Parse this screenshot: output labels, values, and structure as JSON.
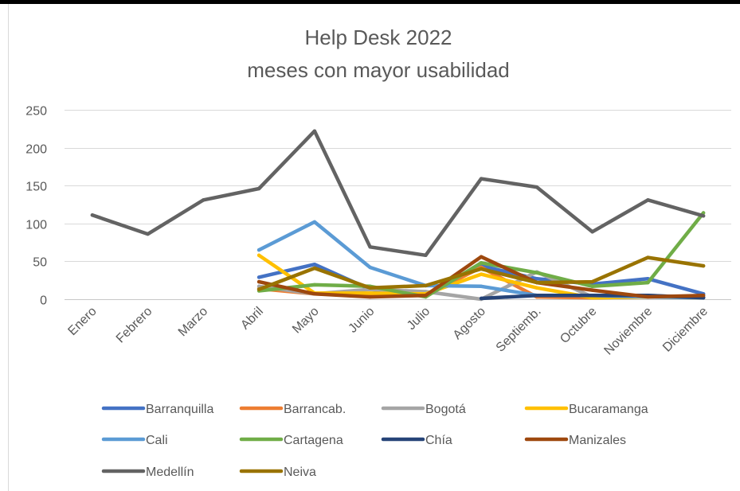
{
  "chart_data": {
    "type": "line",
    "title": "Help Desk 2022",
    "subtitle": "meses con mayor usabilidad",
    "categories": [
      "Enero",
      "Febrero",
      "Marzo",
      "Abril",
      "Mayo",
      "Junio",
      "Julio",
      "Agosto",
      "Septiemb.",
      "Octubre",
      "Noviembre",
      "Diciembre"
    ],
    "ylim": [
      0,
      250
    ],
    "yticks": [
      0,
      50,
      100,
      150,
      200,
      250
    ],
    "grid": true,
    "legend_position": "bottom",
    "series": [
      {
        "name": "Barranquilla",
        "color": "#4472C4",
        "values": [
          null,
          null,
          null,
          29,
          46,
          13,
          5,
          44,
          27,
          20,
          27,
          7
        ]
      },
      {
        "name": "Barrancab.",
        "color": "#ED7D31",
        "values": [
          null,
          null,
          null,
          14,
          7,
          5,
          5,
          42,
          3,
          2,
          3,
          3
        ]
      },
      {
        "name": "Bogotá",
        "color": "#A5A5A5",
        "values": [
          null,
          null,
          null,
          17,
          7,
          13,
          10,
          0,
          36,
          3,
          5,
          2
        ]
      },
      {
        "name": "Bucaramanga",
        "color": "#FFC000",
        "values": [
          null,
          null,
          null,
          58,
          8,
          8,
          7,
          33,
          15,
          2,
          3,
          2
        ]
      },
      {
        "name": "Cali",
        "color": "#5B9BD5",
        "values": [
          null,
          null,
          null,
          65,
          102,
          42,
          18,
          17,
          5,
          5,
          3,
          2
        ]
      },
      {
        "name": "Cartagena",
        "color": "#70AD47",
        "values": [
          null,
          null,
          null,
          11,
          19,
          17,
          3,
          48,
          35,
          17,
          22,
          114
        ]
      },
      {
        "name": "Chía",
        "color": "#264478",
        "values": [
          null,
          null,
          null,
          null,
          null,
          null,
          null,
          1,
          5,
          5,
          5,
          2
        ]
      },
      {
        "name": "Manizales",
        "color": "#9E480E",
        "values": [
          null,
          null,
          null,
          23,
          7,
          3,
          5,
          56,
          22,
          12,
          3,
          5
        ]
      },
      {
        "name": "Medellín",
        "color": "#636363",
        "values": [
          111,
          86,
          131,
          146,
          222,
          69,
          58,
          159,
          148,
          89,
          131,
          110
        ]
      },
      {
        "name": "Neiva",
        "color": "#997300",
        "values": [
          null,
          null,
          null,
          13,
          41,
          15,
          18,
          40,
          22,
          23,
          55,
          44
        ]
      }
    ]
  }
}
